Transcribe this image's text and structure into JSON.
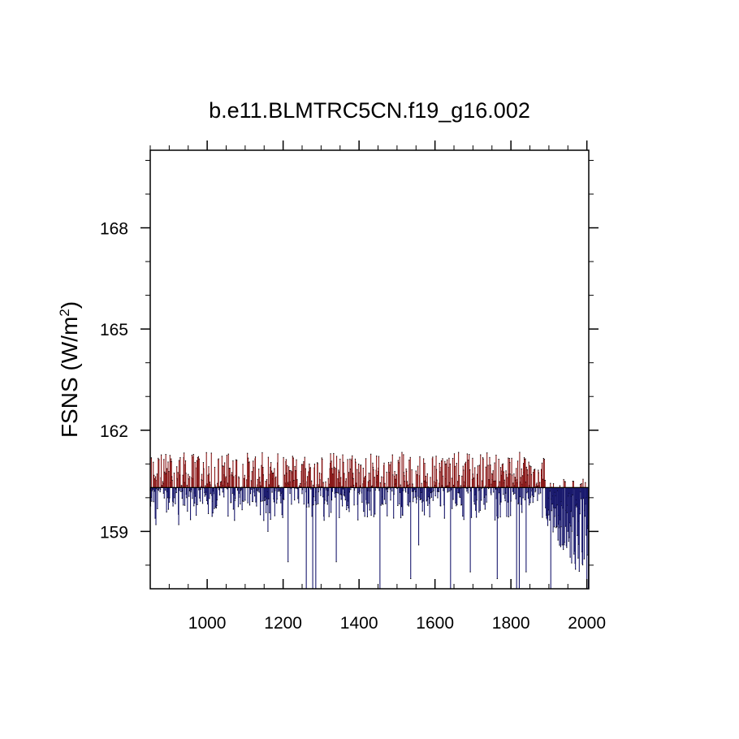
{
  "chart_data": {
    "type": "bar",
    "title": "b.e11.BLMTRC5CN.f19_g16.002",
    "ylabel": "FSNS (W/m",
    "ylabel_sup": "2",
    "ylabel_close": ")",
    "xlabel": "",
    "xlim": [
      850,
      2005
    ],
    "ylim": [
      157.3,
      170.3
    ],
    "reference_value": 160.3,
    "x_ticks": [
      1000,
      1200,
      1400,
      1600,
      1800,
      2000
    ],
    "y_ticks": [
      159,
      162,
      165,
      168
    ],
    "x_tick_labels": [
      "1000",
      "1200",
      "1400",
      "1600",
      "1800",
      "2000"
    ],
    "y_tick_labels": [
      "159",
      "162",
      "165",
      "168"
    ],
    "colors": {
      "above": "#8b1a1a",
      "below": "#1a1a6e",
      "frame": "#000000"
    },
    "series": [
      {
        "x_start": 850,
        "x_step": 1,
        "values_note_free": true,
        "deep_drops": [
          {
            "x": 865,
            "y": 159.2
          },
          {
            "x": 925,
            "y": 159.2
          },
          {
            "x": 948,
            "y": 159.6
          },
          {
            "x": 1160,
            "y": 159.0
          },
          {
            "x": 1213,
            "y": 158.1
          },
          {
            "x": 1261,
            "y": 157.3
          },
          {
            "x": 1278,
            "y": 157.3
          },
          {
            "x": 1286,
            "y": 157.3
          },
          {
            "x": 1340,
            "y": 158.1
          },
          {
            "x": 1455,
            "y": 157.3
          },
          {
            "x": 1536,
            "y": 157.6
          },
          {
            "x": 1557,
            "y": 158.6
          },
          {
            "x": 1641,
            "y": 157.3
          },
          {
            "x": 1693,
            "y": 157.8
          },
          {
            "x": 1764,
            "y": 157.6
          },
          {
            "x": 1815,
            "y": 157.3
          },
          {
            "x": 1822,
            "y": 157.3
          },
          {
            "x": 1840,
            "y": 157.8
          },
          {
            "x": 1905,
            "y": 157.3
          }
        ]
      }
    ]
  }
}
